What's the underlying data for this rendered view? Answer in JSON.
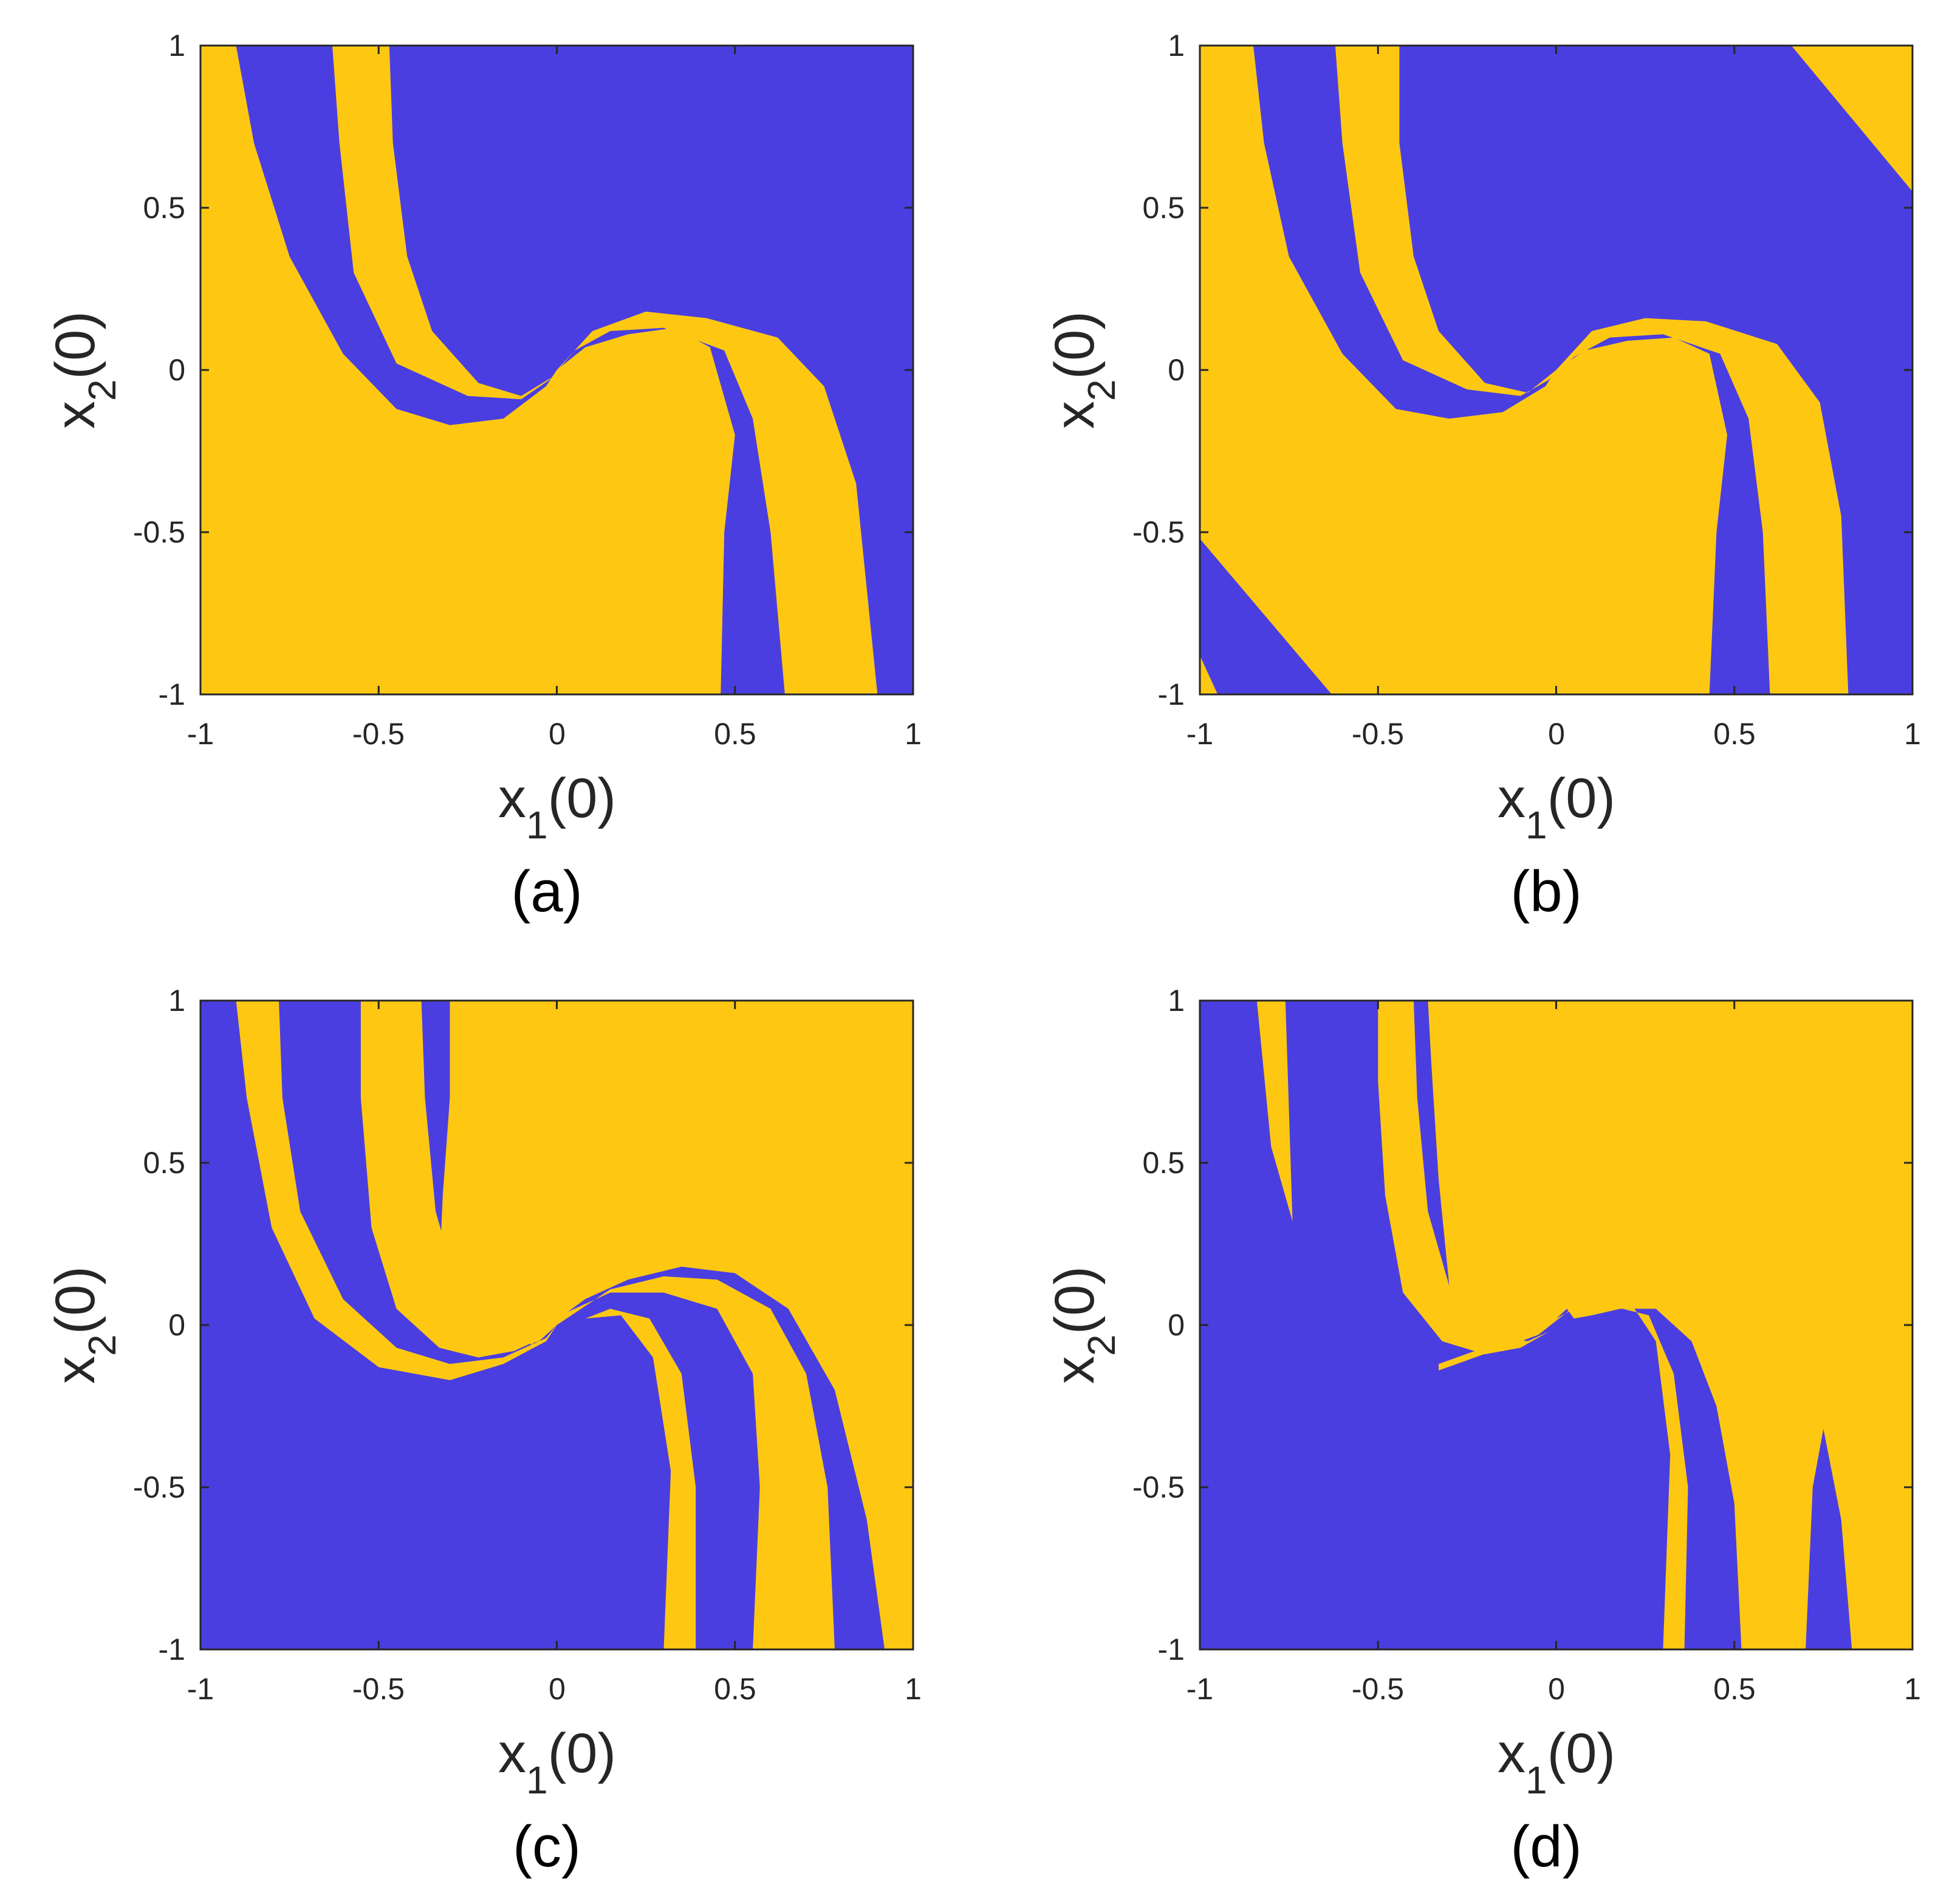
{
  "colors": {
    "basin_a": "#4a3ee0",
    "basin_b": "#fec812",
    "axis": "#262626"
  },
  "x_label": {
    "base": "x",
    "sub": "1",
    "rest": "(0)"
  },
  "y_label": {
    "base": "x",
    "sub": "2",
    "rest": "(0)"
  },
  "x_ticks": [
    "-1",
    "-0.5",
    "0",
    "0.5",
    "1"
  ],
  "y_ticks": [
    "1",
    "0.5",
    "0",
    "-0.5",
    "-1"
  ],
  "chart_data": [
    {
      "type": "heatmap",
      "caption": "(a)",
      "xlim": [
        -1,
        1
      ],
      "ylim": [
        -1,
        1
      ],
      "background": "basin_a",
      "regions": [
        {
          "color": "basin_b",
          "points": [
            [
              -1,
              1
            ],
            [
              -0.9,
              1
            ],
            [
              -0.85,
              0.7
            ],
            [
              -0.75,
              0.35
            ],
            [
              -0.6,
              0.05
            ],
            [
              -0.45,
              -0.12
            ],
            [
              -0.3,
              -0.17
            ],
            [
              -0.15,
              -0.15
            ],
            [
              -0.03,
              -0.05
            ],
            [
              0,
              0
            ],
            [
              0.08,
              0.07
            ],
            [
              0.2,
              0.11
            ],
            [
              0.33,
              0.13
            ],
            [
              0.43,
              0.07
            ],
            [
              0.5,
              -0.2
            ],
            [
              0.47,
              -0.5
            ],
            [
              0.46,
              -1
            ],
            [
              -1,
              -1
            ]
          ]
        },
        {
          "color": "basin_b",
          "points": [
            [
              -0.63,
              1
            ],
            [
              -0.47,
              1
            ],
            [
              -0.46,
              0.7
            ],
            [
              -0.42,
              0.35
            ],
            [
              -0.35,
              0.12
            ],
            [
              -0.22,
              -0.04
            ],
            [
              -0.1,
              -0.08
            ],
            [
              -0.01,
              -0.02
            ],
            [
              0,
              0
            ],
            [
              0.1,
              0.12
            ],
            [
              0.25,
              0.18
            ],
            [
              0.42,
              0.16
            ],
            [
              0.62,
              0.1
            ],
            [
              0.75,
              -0.05
            ],
            [
              0.84,
              -0.35
            ],
            [
              0.9,
              -1
            ],
            [
              0.64,
              -1
            ],
            [
              0.6,
              -0.5
            ],
            [
              0.55,
              -0.15
            ],
            [
              0.47,
              0.06
            ],
            [
              0.3,
              0.13
            ],
            [
              0.15,
              0.12
            ],
            [
              0.05,
              0.06
            ],
            [
              -0.02,
              -0.03
            ],
            [
              -0.1,
              -0.09
            ],
            [
              -0.25,
              -0.08
            ],
            [
              -0.45,
              0.02
            ],
            [
              -0.57,
              0.3
            ],
            [
              -0.61,
              0.7
            ]
          ]
        }
      ]
    },
    {
      "type": "heatmap",
      "caption": "(b)",
      "xlim": [
        -1,
        1
      ],
      "ylim": [
        -1,
        1
      ],
      "background": "basin_a",
      "regions": [
        {
          "color": "basin_b",
          "points": [
            [
              -1,
              1
            ],
            [
              -0.85,
              1
            ],
            [
              -0.82,
              0.7
            ],
            [
              -0.75,
              0.35
            ],
            [
              -0.6,
              0.05
            ],
            [
              -0.45,
              -0.12
            ],
            [
              -0.3,
              -0.15
            ],
            [
              -0.15,
              -0.13
            ],
            [
              -0.03,
              -0.05
            ],
            [
              0,
              0
            ],
            [
              0.08,
              0.06
            ],
            [
              0.2,
              0.09
            ],
            [
              0.33,
              0.1
            ],
            [
              0.43,
              0.05
            ],
            [
              0.48,
              -0.2
            ],
            [
              0.45,
              -0.5
            ],
            [
              0.43,
              -1
            ],
            [
              -0.63,
              -1
            ],
            [
              -1,
              -0.52
            ]
          ]
        },
        {
          "color": "basin_b",
          "points": [
            [
              -0.52,
              1
            ],
            [
              -0.44,
              1
            ],
            [
              -0.44,
              0.7
            ],
            [
              -0.4,
              0.35
            ],
            [
              -0.33,
              0.12
            ],
            [
              -0.2,
              -0.04
            ],
            [
              -0.08,
              -0.07
            ],
            [
              0,
              0
            ],
            [
              0.1,
              0.12
            ],
            [
              0.25,
              0.16
            ],
            [
              0.42,
              0.15
            ],
            [
              0.62,
              0.08
            ],
            [
              0.74,
              -0.1
            ],
            [
              0.8,
              -0.45
            ],
            [
              0.82,
              -1
            ],
            [
              0.6,
              -1
            ],
            [
              0.58,
              -0.5
            ],
            [
              0.54,
              -0.15
            ],
            [
              0.46,
              0.05
            ],
            [
              0.3,
              0.11
            ],
            [
              0.15,
              0.1
            ],
            [
              0.05,
              0.04
            ],
            [
              -0.02,
              -0.03
            ],
            [
              -0.1,
              -0.08
            ],
            [
              -0.25,
              -0.06
            ],
            [
              -0.43,
              0.03
            ],
            [
              -0.55,
              0.3
            ],
            [
              -0.6,
              0.7
            ],
            [
              -0.62,
              1
            ]
          ]
        },
        {
          "color": "basin_b",
          "points": [
            [
              0.66,
              1
            ],
            [
              1,
              1
            ],
            [
              1,
              0.55
            ]
          ]
        },
        {
          "color": "basin_b",
          "points": [
            [
              -1,
              -0.88
            ],
            [
              -0.95,
              -1
            ],
            [
              -1,
              -1
            ]
          ]
        }
      ]
    },
    {
      "type": "heatmap",
      "caption": "(c)",
      "xlim": [
        -1,
        1
      ],
      "ylim": [
        -1,
        1
      ],
      "background": "basin_a",
      "regions": [
        {
          "color": "basin_b",
          "points": [
            [
              -0.3,
              1
            ],
            [
              1,
              1
            ],
            [
              1,
              -1
            ],
            [
              0.92,
              -1
            ],
            [
              0.87,
              -0.6
            ],
            [
              0.78,
              -0.2
            ],
            [
              0.65,
              0.05
            ],
            [
              0.5,
              0.16
            ],
            [
              0.35,
              0.18
            ],
            [
              0.2,
              0.14
            ],
            [
              0.08,
              0.08
            ],
            [
              0.03,
              0.04
            ],
            [
              0.15,
              0.1
            ],
            [
              0.3,
              0.1
            ],
            [
              0.45,
              0.05
            ],
            [
              0.55,
              -0.15
            ],
            [
              0.57,
              -0.5
            ],
            [
              0.55,
              -1
            ],
            [
              0.78,
              -1
            ],
            [
              0.76,
              -0.5
            ],
            [
              0.7,
              -0.15
            ],
            [
              0.6,
              0.05
            ],
            [
              0.45,
              0.14
            ],
            [
              0.3,
              0.15
            ],
            [
              0.15,
              0.11
            ],
            [
              0,
              0
            ],
            [
              -0.05,
              -0.05
            ],
            [
              -0.15,
              -0.08
            ],
            [
              -0.28,
              -0.01
            ],
            [
              -0.33,
              0.15
            ],
            [
              -0.32,
              0.4
            ],
            [
              -0.3,
              0.7
            ]
          ]
        },
        {
          "color": "basin_b",
          "points": [
            [
              -0.55,
              1
            ],
            [
              -0.38,
              1
            ],
            [
              -0.37,
              0.7
            ],
            [
              -0.34,
              0.35
            ],
            [
              -0.28,
              0.12
            ],
            [
              -0.18,
              -0.03
            ],
            [
              -0.07,
              -0.06
            ],
            [
              0,
              0
            ],
            [
              -0.04,
              -0.04
            ],
            [
              -0.12,
              -0.08
            ],
            [
              -0.22,
              -0.1
            ],
            [
              -0.33,
              -0.07
            ],
            [
              -0.45,
              0.05
            ],
            [
              -0.52,
              0.3
            ],
            [
              -0.55,
              0.7
            ]
          ]
        },
        {
          "color": "basin_b",
          "points": [
            [
              -0.9,
              1
            ],
            [
              -0.78,
              1
            ],
            [
              -0.77,
              0.7
            ],
            [
              -0.72,
              0.35
            ],
            [
              -0.6,
              0.08
            ],
            [
              -0.45,
              -0.07
            ],
            [
              -0.3,
              -0.12
            ],
            [
              -0.15,
              -0.1
            ],
            [
              -0.03,
              -0.04
            ],
            [
              0,
              0
            ],
            [
              -0.03,
              -0.05
            ],
            [
              -0.15,
              -0.12
            ],
            [
              -0.3,
              -0.17
            ],
            [
              -0.5,
              -0.13
            ],
            [
              -0.68,
              0.02
            ],
            [
              -0.8,
              0.3
            ],
            [
              -0.87,
              0.7
            ]
          ]
        },
        {
          "color": "basin_b",
          "points": [
            [
              0.08,
              0.02
            ],
            [
              0.18,
              0.03
            ],
            [
              0.27,
              -0.1
            ],
            [
              0.32,
              -0.45
            ],
            [
              0.3,
              -1
            ],
            [
              0.39,
              -1
            ],
            [
              0.39,
              -0.5
            ],
            [
              0.35,
              -0.15
            ],
            [
              0.26,
              0.02
            ],
            [
              0.15,
              0.05
            ]
          ]
        }
      ]
    },
    {
      "type": "heatmap",
      "caption": "(d)",
      "xlim": [
        -1,
        1
      ],
      "ylim": [
        -1,
        1
      ],
      "background": "basin_a",
      "regions": [
        {
          "color": "basin_b",
          "points": [
            [
              -0.36,
              1
            ],
            [
              1,
              1
            ],
            [
              1,
              -1
            ],
            [
              0.83,
              -1
            ],
            [
              0.8,
              -0.6
            ],
            [
              0.75,
              -0.32
            ],
            [
              0.72,
              -0.5
            ],
            [
              0.7,
              -1
            ],
            [
              0.52,
              -1
            ],
            [
              0.5,
              -0.55
            ],
            [
              0.45,
              -0.25
            ],
            [
              0.38,
              -0.05
            ],
            [
              0.28,
              0.05
            ],
            [
              0.18,
              0.05
            ],
            [
              0.1,
              0.03
            ],
            [
              0.05,
              0.02
            ],
            [
              0.03,
              0.05
            ],
            [
              -0.05,
              -0.03
            ],
            [
              -0.15,
              -0.07
            ],
            [
              -0.25,
              -0.02
            ],
            [
              -0.3,
              0.12
            ],
            [
              -0.33,
              0.45
            ],
            [
              -0.35,
              0.8
            ]
          ]
        },
        {
          "color": "basin_b",
          "points": [
            [
              -0.5,
              1
            ],
            [
              -0.4,
              1
            ],
            [
              -0.39,
              0.7
            ],
            [
              -0.36,
              0.35
            ],
            [
              -0.3,
              0.12
            ],
            [
              -0.2,
              -0.02
            ],
            [
              -0.08,
              -0.05
            ],
            [
              -0.02,
              -0.02
            ],
            [
              -0.1,
              -0.07
            ],
            [
              -0.2,
              -0.09
            ],
            [
              -0.32,
              -0.05
            ],
            [
              -0.43,
              0.1
            ],
            [
              -0.48,
              0.4
            ],
            [
              -0.5,
              0.75
            ]
          ]
        },
        {
          "color": "basin_b",
          "points": [
            [
              -0.84,
              1
            ],
            [
              -0.76,
              1
            ],
            [
              -0.74,
              0.32
            ],
            [
              -0.8,
              0.55
            ]
          ]
        },
        {
          "color": "basin_b",
          "points": [
            [
              0.1,
              0.05
            ],
            [
              0.22,
              0.05
            ],
            [
              0.28,
              -0.05
            ],
            [
              0.32,
              -0.4
            ],
            [
              0.3,
              -1
            ],
            [
              0.36,
              -1
            ],
            [
              0.37,
              -0.5
            ],
            [
              0.33,
              -0.15
            ],
            [
              0.26,
              0.03
            ],
            [
              0.15,
              0.06
            ]
          ]
        },
        {
          "color": "basin_b",
          "points": [
            [
              -0.33,
              -0.14
            ],
            [
              -0.05,
              -0.03
            ],
            [
              0.1,
              0.1
            ],
            [
              0.3,
              0.14
            ],
            [
              0.32,
              0.13
            ],
            [
              0.1,
              0.08
            ],
            [
              -0.05,
              -0.01
            ],
            [
              -0.33,
              -0.12
            ]
          ]
        }
      ]
    }
  ]
}
